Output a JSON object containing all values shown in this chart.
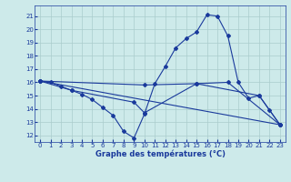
{
  "xlabel": "Graphe des températures (°C)",
  "background_color": "#cdeaea",
  "grid_color": "#aacccc",
  "line_color": "#1a3a9c",
  "xlim": [
    -0.5,
    23.5
  ],
  "ylim": [
    11.5,
    21.8
  ],
  "yticks": [
    12,
    13,
    14,
    15,
    16,
    17,
    18,
    19,
    20,
    21
  ],
  "xticks": [
    0,
    1,
    2,
    3,
    4,
    5,
    6,
    7,
    8,
    9,
    10,
    11,
    12,
    13,
    14,
    15,
    16,
    17,
    18,
    19,
    20,
    21,
    22,
    23
  ],
  "series": [
    {
      "x": [
        0,
        1,
        2,
        3,
        4,
        5,
        6,
        7,
        8,
        9,
        10,
        11,
        12,
        13,
        14,
        15,
        16,
        17,
        18,
        19,
        20,
        21,
        22,
        23
      ],
      "y": [
        16.1,
        16.0,
        15.7,
        15.4,
        15.1,
        14.7,
        14.1,
        13.5,
        12.3,
        11.8,
        13.6,
        15.9,
        17.2,
        18.6,
        19.3,
        19.8,
        21.1,
        21.0,
        19.5,
        16.0,
        14.8,
        15.0,
        13.9,
        12.8
      ]
    },
    {
      "x": [
        0,
        10,
        15,
        18,
        23
      ],
      "y": [
        16.1,
        15.8,
        15.9,
        16.0,
        12.8
      ]
    },
    {
      "x": [
        0,
        3,
        9,
        10,
        15,
        21,
        23
      ],
      "y": [
        16.1,
        15.4,
        14.5,
        13.7,
        15.9,
        15.0,
        12.8
      ]
    },
    {
      "x": [
        0,
        23
      ],
      "y": [
        16.1,
        12.8
      ]
    }
  ]
}
